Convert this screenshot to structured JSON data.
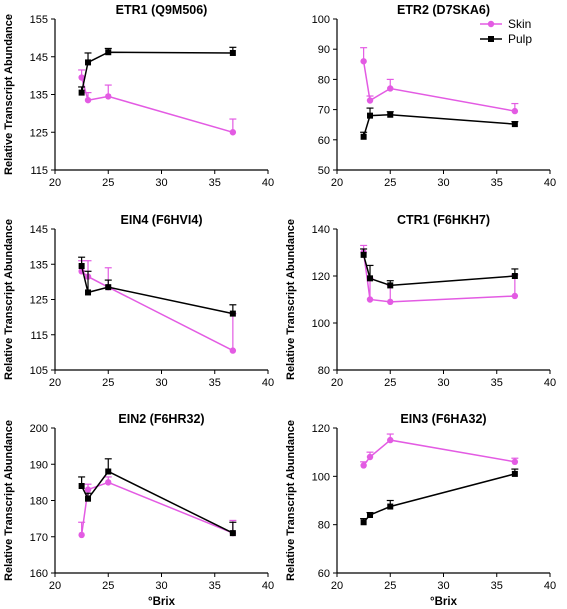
{
  "colors": {
    "Skin": "#e35be3",
    "Pulp": "#000000"
  },
  "legend": {
    "entries": [
      "Skin",
      "Pulp"
    ],
    "placement": "top-right of ETR2 panel"
  },
  "chart_data": [
    {
      "type": "line",
      "title": "ETR1 (Q9M506)",
      "ylabel": "Relative Transcript Abundance",
      "xlabel": "",
      "xlim": [
        20,
        40
      ],
      "ylim": [
        115,
        155
      ],
      "xticks": [
        20,
        25,
        30,
        35,
        40
      ],
      "yticks": [
        115,
        125,
        135,
        145,
        155
      ],
      "series": [
        {
          "name": "Skin",
          "x": [
            22.5,
            23.1,
            25.0,
            36.7
          ],
          "y": [
            139.5,
            133.5,
            134.5,
            125.0
          ],
          "err": [
            2.0,
            2.0,
            3.0,
            3.5
          ]
        },
        {
          "name": "Pulp",
          "x": [
            22.5,
            23.1,
            25.0,
            36.7
          ],
          "y": [
            135.5,
            143.5,
            146.2,
            146.0
          ],
          "err": [
            1.5,
            2.5,
            1.0,
            1.5
          ]
        }
      ]
    },
    {
      "type": "line",
      "title": "ETR2 (D7SKA6)",
      "ylabel": "",
      "xlabel": "",
      "xlim": [
        20,
        40
      ],
      "ylim": [
        50,
        100
      ],
      "xticks": [
        20,
        25,
        30,
        35,
        40
      ],
      "yticks": [
        50,
        60,
        70,
        80,
        90,
        100
      ],
      "show_legend": true,
      "series": [
        {
          "name": "Skin",
          "x": [
            22.5,
            23.1,
            25.0,
            36.7
          ],
          "y": [
            86.0,
            73.0,
            77.0,
            69.5
          ],
          "err": [
            4.5,
            1.5,
            3.0,
            2.5
          ]
        },
        {
          "name": "Pulp",
          "x": [
            22.5,
            23.1,
            25.0,
            36.7
          ],
          "y": [
            61.0,
            68.0,
            68.3,
            65.2
          ],
          "err": [
            1.5,
            2.5,
            1.0,
            0.8
          ]
        }
      ]
    },
    {
      "type": "line",
      "title": "EIN4 (F6HVI4)",
      "ylabel": "Relative Transcript Abundance",
      "xlabel": "",
      "xlim": [
        20,
        40
      ],
      "ylim": [
        105,
        145
      ],
      "xticks": [
        20,
        25,
        30,
        35,
        40
      ],
      "yticks": [
        105,
        115,
        125,
        135,
        145
      ],
      "series": [
        {
          "name": "Skin",
          "x": [
            22.5,
            23.1,
            25.0,
            36.7
          ],
          "y": [
            133.0,
            131.5,
            128.5,
            110.5
          ],
          "err": [
            3.0,
            4.5,
            5.5,
            10.5
          ]
        },
        {
          "name": "Pulp",
          "x": [
            22.5,
            23.1,
            25.0,
            36.7
          ],
          "y": [
            134.5,
            127.0,
            128.5,
            121.0
          ],
          "err": [
            2.5,
            6.0,
            2.0,
            2.5
          ]
        }
      ]
    },
    {
      "type": "line",
      "title": "CTR1 (F6HKH7)",
      "ylabel": "Relative Transcript Abundance",
      "xlabel": "",
      "xlim": [
        20,
        40
      ],
      "ylim": [
        80,
        140
      ],
      "xticks": [
        20,
        25,
        30,
        35,
        40
      ],
      "yticks": [
        80,
        100,
        120,
        140
      ],
      "series": [
        {
          "name": "Skin",
          "x": [
            22.5,
            23.1,
            25.0,
            36.7
          ],
          "y": [
            130.0,
            110.0,
            109.0,
            111.5
          ],
          "err": [
            3.0,
            9.0,
            7.0,
            9.0
          ]
        },
        {
          "name": "Pulp",
          "x": [
            22.5,
            23.1,
            25.0,
            36.7
          ],
          "y": [
            129.0,
            119.0,
            116.0,
            120.0
          ],
          "err": [
            2.5,
            5.5,
            2.0,
            3.0
          ]
        }
      ]
    },
    {
      "type": "line",
      "title": "EIN2  (F6HR32)",
      "ylabel": "Relative Transcript Abundance",
      "xlabel": "°Brix",
      "xlim": [
        20,
        40
      ],
      "ylim": [
        160,
        200
      ],
      "xticks": [
        20,
        25,
        30,
        35,
        40
      ],
      "yticks": [
        160,
        170,
        180,
        190,
        200
      ],
      "series": [
        {
          "name": "Skin",
          "x": [
            22.5,
            23.1,
            25.0,
            36.7
          ],
          "y": [
            170.5,
            183.0,
            185.0,
            171.0
          ],
          "err": [
            3.5,
            1.5,
            1.5,
            3.5
          ]
        },
        {
          "name": "Pulp",
          "x": [
            22.5,
            23.1,
            25.0,
            36.7
          ],
          "y": [
            184.0,
            180.5,
            188.0,
            171.0
          ],
          "err": [
            2.5,
            1.5,
            3.5,
            3.0
          ]
        }
      ]
    },
    {
      "type": "line",
      "title": "EIN3 (F6HA32)",
      "ylabel": "Relative Transcript Abundance",
      "xlabel": "°Brix",
      "xlim": [
        20,
        40
      ],
      "ylim": [
        60,
        120
      ],
      "xticks": [
        20,
        25,
        30,
        35,
        40
      ],
      "yticks": [
        60,
        80,
        100,
        120
      ],
      "series": [
        {
          "name": "Skin",
          "x": [
            22.5,
            23.1,
            25.0,
            36.7
          ],
          "y": [
            104.5,
            108.0,
            115.0,
            106.0
          ],
          "err": [
            1.5,
            2.0,
            2.5,
            1.5
          ]
        },
        {
          "name": "Pulp",
          "x": [
            22.5,
            23.1,
            25.0,
            36.7
          ],
          "y": [
            81.0,
            84.0,
            87.5,
            101.0
          ],
          "err": [
            1.5,
            1.0,
            2.5,
            2.0
          ]
        }
      ]
    }
  ]
}
